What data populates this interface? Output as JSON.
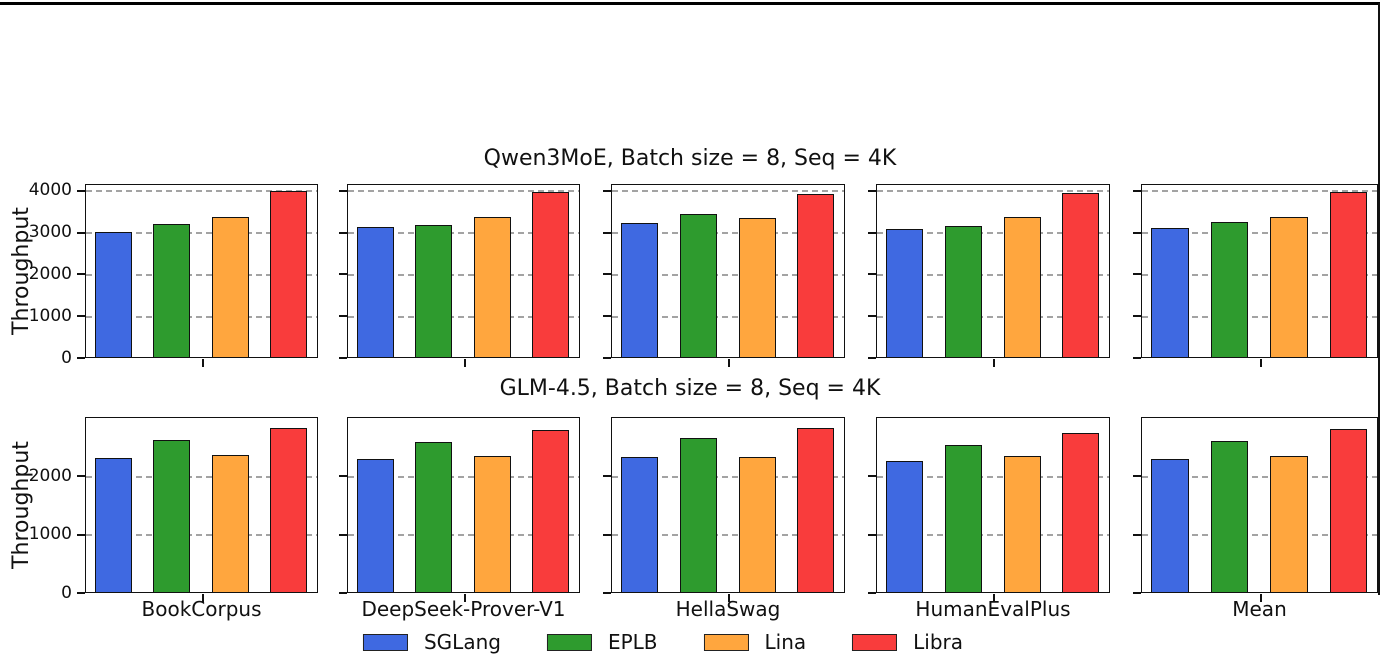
{
  "figure": {
    "background": "#ffffff",
    "top_rule_color": "#000000",
    "grid_color": "#a3a3a3",
    "bar_edge_color": "#111111"
  },
  "legend": {
    "position": "bottom-center",
    "items": [
      {
        "label": "SGLang",
        "color": "#3F69E1"
      },
      {
        "label": "EPLB",
        "color": "#2E9B2E"
      },
      {
        "label": "Lina",
        "color": "#FFA63E"
      },
      {
        "label": "Libra",
        "color": "#F93C3C"
      }
    ]
  },
  "chart_data": [
    {
      "type": "bar",
      "title": "Qwen3MoE, Batch size = 8, Seq = 4K",
      "ylabel": "Throughput",
      "xlabel": "",
      "categories": [
        "BookCorpus",
        "DeepSeek-Prover-V1",
        "HellaSwag",
        "HumanEvalPlus",
        "Mean"
      ],
      "series": [
        {
          "name": "SGLang",
          "color": "#3F69E1",
          "values": [
            2980,
            3110,
            3190,
            3050,
            3080
          ]
        },
        {
          "name": "EPLB",
          "color": "#2E9B2E",
          "values": [
            3170,
            3140,
            3420,
            3130,
            3215
          ]
        },
        {
          "name": "Lina",
          "color": "#FFA63E",
          "values": [
            3340,
            3340,
            3310,
            3330,
            3335
          ]
        },
        {
          "name": "Libra",
          "color": "#F93C3C",
          "values": [
            3950,
            3930,
            3890,
            3900,
            3925
          ]
        }
      ],
      "ylim": [
        0,
        4150
      ],
      "yticks": [
        0,
        1000,
        2000,
        3000,
        4000
      ],
      "grid": "dashed-horizontal",
      "show_xticklabels": false
    },
    {
      "type": "bar",
      "title": "GLM-4.5, Batch size = 8, Seq = 4K",
      "ylabel": "Throughput",
      "xlabel": "",
      "categories": [
        "BookCorpus",
        "DeepSeek-Prover-V1",
        "HellaSwag",
        "HumanEvalPlus",
        "Mean"
      ],
      "series": [
        {
          "name": "SGLang",
          "color": "#3F69E1",
          "values": [
            2280,
            2260,
            2300,
            2230,
            2270
          ]
        },
        {
          "name": "EPLB",
          "color": "#2E9B2E",
          "values": [
            2590,
            2550,
            2620,
            2510,
            2570
          ]
        },
        {
          "name": "Lina",
          "color": "#FFA63E",
          "values": [
            2330,
            2310,
            2300,
            2310,
            2320
          ]
        },
        {
          "name": "Libra",
          "color": "#F93C3C",
          "values": [
            2790,
            2760,
            2800,
            2710,
            2780
          ]
        }
      ],
      "ylim": [
        0,
        3000
      ],
      "yticks": [
        0,
        1000,
        2000
      ],
      "grid": "dashed-horizontal",
      "show_xticklabels": true
    }
  ]
}
